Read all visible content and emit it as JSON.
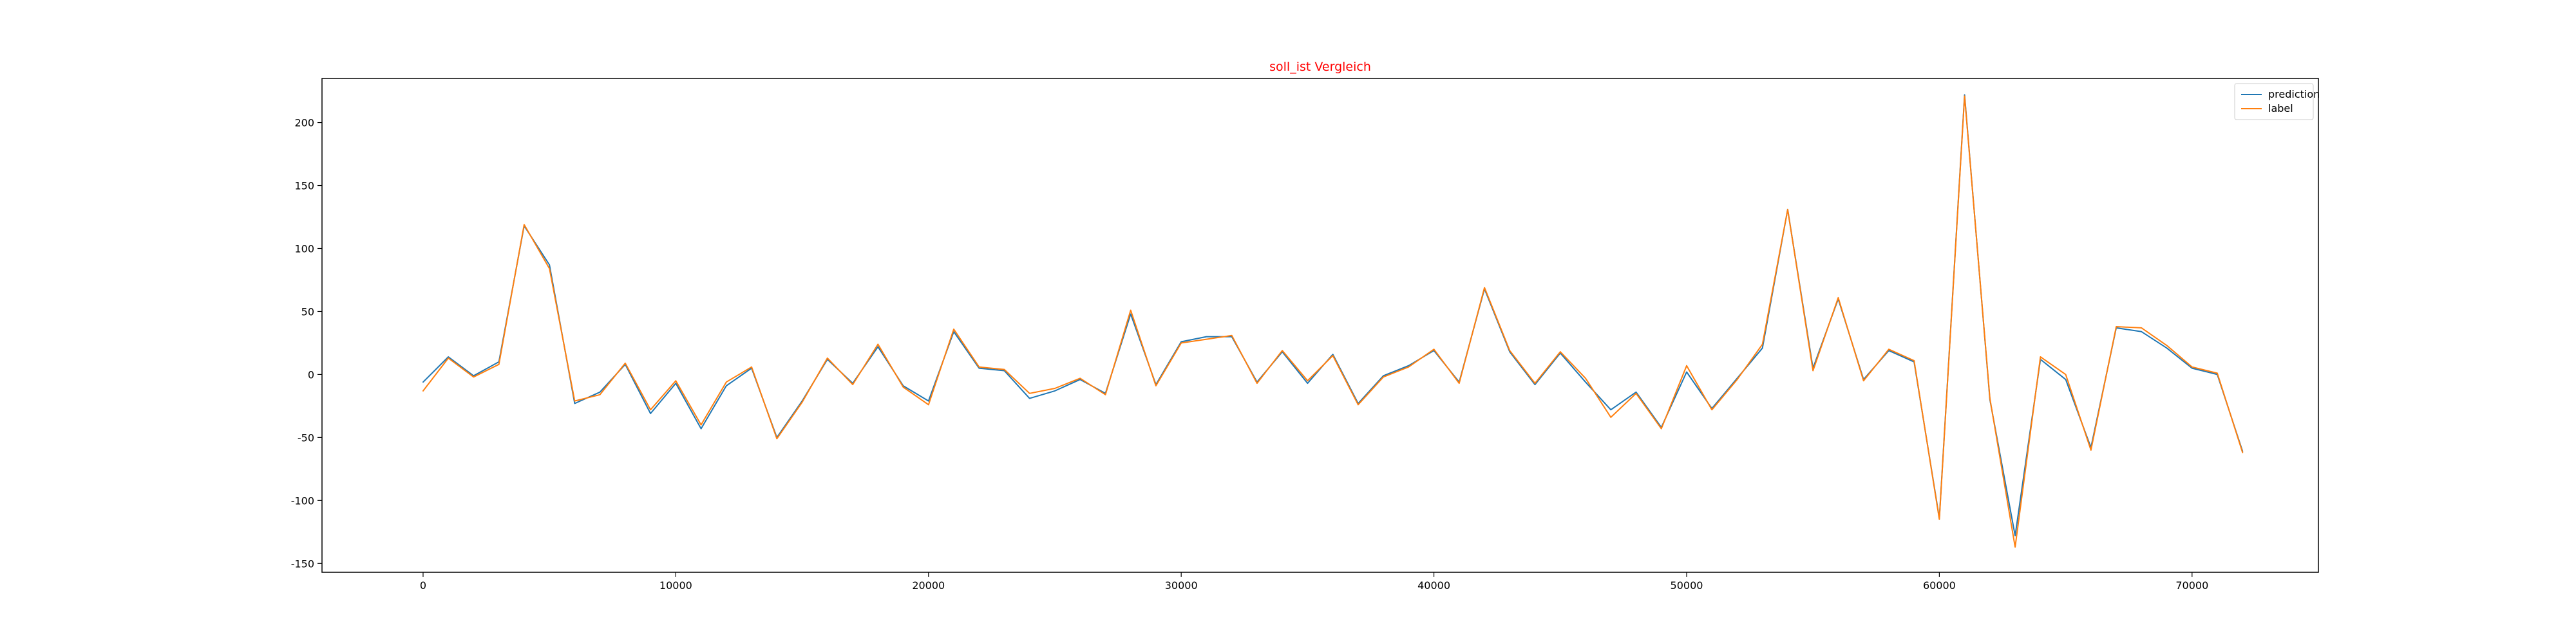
{
  "chart_data": {
    "type": "line",
    "title": "soll_ist Vergleich",
    "title_color": "#ff0000",
    "xlabel": "",
    "ylabel": "",
    "xlim": [
      -4000,
      75000
    ],
    "ylim": [
      -157,
      235
    ],
    "xticks": [
      0,
      10000,
      20000,
      30000,
      40000,
      50000,
      60000,
      70000
    ],
    "yticks": [
      -150,
      -100,
      -50,
      0,
      50,
      100,
      150,
      200
    ],
    "grid": false,
    "legend_position": "top-right",
    "x": [
      0,
      1000,
      2000,
      3000,
      4000,
      5000,
      6000,
      7000,
      8000,
      9000,
      10000,
      11000,
      12000,
      13000,
      14000,
      15000,
      16000,
      17000,
      18000,
      19000,
      20000,
      21000,
      22000,
      23000,
      24000,
      25000,
      26000,
      27000,
      28000,
      29000,
      30000,
      31000,
      32000,
      33000,
      34000,
      35000,
      36000,
      37000,
      38000,
      39000,
      40000,
      41000,
      42000,
      43000,
      44000,
      45000,
      46000,
      47000,
      48000,
      49000,
      50000,
      51000,
      52000,
      53000,
      54000,
      55000,
      56000,
      57000,
      58000,
      59000,
      60000,
      61000,
      62000,
      63000,
      64000,
      65000,
      66000,
      67000,
      68000,
      69000,
      70000,
      71000,
      72000
    ],
    "series": [
      {
        "name": "prediction",
        "color": "#1f77b4",
        "values": [
          -6,
          14,
          -1,
          10,
          118,
          87,
          -23,
          -14,
          8,
          -31,
          -7,
          -43,
          -9,
          5,
          -50,
          -21,
          12,
          -7,
          22,
          -9,
          -21,
          34,
          5,
          3,
          -19,
          -13,
          -4,
          -15,
          48,
          -8,
          26,
          30,
          30,
          -6,
          18,
          -7,
          16,
          -23,
          -1,
          7,
          19,
          -6,
          68,
          18,
          -8,
          17,
          -6,
          -28,
          -14,
          -42,
          2,
          -27,
          -3,
          21,
          131,
          5,
          60,
          -4,
          19,
          10,
          -114,
          222,
          -20,
          -128,
          12,
          -4,
          -58,
          37,
          34,
          21,
          5,
          0,
          -61
        ]
      },
      {
        "name": "label",
        "color": "#ff7f0e",
        "values": [
          -13,
          13,
          -2,
          8,
          119,
          84,
          -21,
          -16,
          9,
          -28,
          -5,
          -40,
          -6,
          6,
          -51,
          -22,
          13,
          -8,
          24,
          -10,
          -24,
          36,
          6,
          4,
          -15,
          -11,
          -3,
          -16,
          51,
          -9,
          25,
          28,
          31,
          -7,
          19,
          -5,
          15,
          -24,
          -2,
          6,
          20,
          -7,
          69,
          19,
          -7,
          18,
          -3,
          -34,
          -15,
          -43,
          7,
          -28,
          -4,
          24,
          131,
          3,
          61,
          -5,
          20,
          11,
          -115,
          221,
          -19,
          -137,
          14,
          0,
          -60,
          38,
          37,
          23,
          6,
          1,
          -62
        ]
      }
    ]
  }
}
